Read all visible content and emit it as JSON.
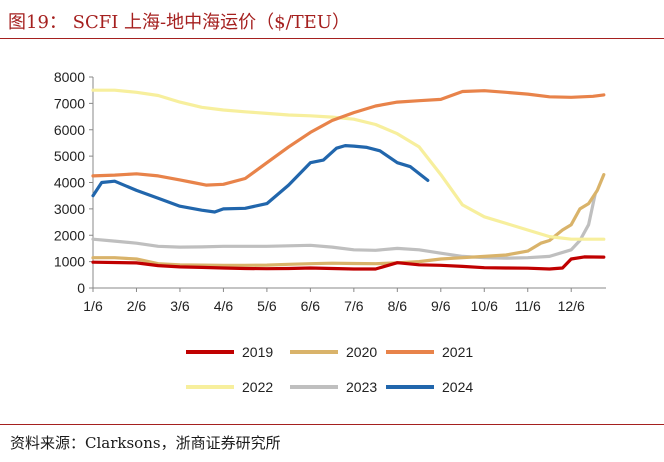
{
  "header": {
    "title": "图19：  SCFI 上海-地中海运价（$/TEU）"
  },
  "footer": {
    "source": "资料来源：Clarksons，浙商证券研究所"
  },
  "chart_data": {
    "type": "line",
    "title": "SCFI 上海-地中海运价（$/TEU）",
    "xlabel": "",
    "ylabel": "",
    "ylim": [
      0,
      8000
    ],
    "yticks": [
      0,
      1000,
      2000,
      3000,
      4000,
      5000,
      6000,
      7000,
      8000
    ],
    "ytick_labels": [
      "0",
      "1000",
      "2000",
      "3000",
      "4000",
      "5000",
      "6000",
      "7000",
      "8000"
    ],
    "xlim": [
      1,
      12.8
    ],
    "xticks": [
      1,
      2,
      3,
      4,
      5,
      6,
      7,
      8,
      9,
      10,
      11,
      12
    ],
    "xtick_labels": [
      "1/6",
      "2/6",
      "3/6",
      "4/6",
      "5/6",
      "6/6",
      "7/6",
      "8/6",
      "9/6",
      "10/6",
      "11/6",
      "12/6"
    ],
    "legend_position": "bottom",
    "grid": false,
    "series": [
      {
        "name": "2019",
        "color": "#c00000",
        "x": [
          1,
          2,
          2.5,
          3,
          3.5,
          4,
          4.5,
          5,
          5.5,
          6,
          6.5,
          7,
          7.5,
          8,
          8.5,
          9,
          9.5,
          10,
          10.5,
          11,
          11.5,
          11.8,
          12,
          12.3,
          12.75
        ],
        "y": [
          980,
          950,
          850,
          800,
          780,
          760,
          740,
          730,
          740,
          760,
          740,
          720,
          720,
          960,
          880,
          860,
          820,
          770,
          760,
          750,
          720,
          760,
          1100,
          1180,
          1170
        ]
      },
      {
        "name": "2020",
        "color": "#d9b36a",
        "x": [
          1,
          1.5,
          2,
          2.5,
          3,
          3.5,
          4,
          4.5,
          5,
          5.5,
          6,
          6.5,
          7,
          7.5,
          8,
          8.5,
          9,
          9.5,
          10,
          10.5,
          11,
          11.3,
          11.5,
          11.8,
          12,
          12.2,
          12.4,
          12.6,
          12.75
        ],
        "y": [
          1150,
          1150,
          1100,
          920,
          880,
          870,
          860,
          860,
          870,
          900,
          920,
          940,
          930,
          920,
          950,
          1000,
          1100,
          1150,
          1200,
          1250,
          1400,
          1700,
          1800,
          2200,
          2400,
          3000,
          3200,
          3700,
          4300
        ]
      },
      {
        "name": "2021",
        "color": "#e8834a",
        "x": [
          1,
          1.5,
          2,
          2.5,
          3,
          3.3,
          3.6,
          4,
          4.5,
          5,
          5.5,
          6,
          6.5,
          7,
          7.5,
          8,
          8.5,
          9,
          9.5,
          10,
          10.5,
          11,
          11.5,
          12,
          12.5,
          12.75
        ],
        "y": [
          4250,
          4280,
          4330,
          4250,
          4100,
          4000,
          3900,
          3930,
          4150,
          4750,
          5350,
          5900,
          6350,
          6650,
          6900,
          7050,
          7100,
          7150,
          7450,
          7480,
          7420,
          7350,
          7250,
          7230,
          7270,
          7320
        ]
      },
      {
        "name": "2022",
        "color": "#f7ef9d",
        "x": [
          1,
          1.5,
          2,
          2.5,
          3,
          3.5,
          4,
          4.5,
          5,
          5.5,
          6,
          6.5,
          7,
          7.5,
          8,
          8.5,
          9,
          9.5,
          10,
          10.5,
          11,
          11.5,
          12,
          12.5,
          12.75
        ],
        "y": [
          7500,
          7500,
          7420,
          7300,
          7050,
          6850,
          6750,
          6680,
          6620,
          6560,
          6530,
          6480,
          6400,
          6200,
          5850,
          5350,
          4300,
          3150,
          2700,
          2450,
          2200,
          1950,
          1850,
          1850,
          1850
        ]
      },
      {
        "name": "2023",
        "color": "#bfbfbf",
        "x": [
          1,
          1.5,
          2,
          2.5,
          3,
          3.5,
          4,
          4.5,
          5,
          5.5,
          6,
          6.5,
          7,
          7.5,
          8,
          8.5,
          9,
          9.5,
          10,
          10.5,
          11,
          11.5,
          12,
          12.2,
          12.4,
          12.55
        ],
        "y": [
          1850,
          1780,
          1700,
          1580,
          1550,
          1560,
          1580,
          1580,
          1580,
          1600,
          1620,
          1550,
          1450,
          1430,
          1500,
          1450,
          1320,
          1200,
          1150,
          1130,
          1150,
          1200,
          1450,
          1800,
          2400,
          3550
        ]
      },
      {
        "name": "2024",
        "color": "#2166ac",
        "x": [
          1,
          1.2,
          1.5,
          2,
          2.5,
          3,
          3.5,
          3.8,
          4,
          4.5,
          5,
          5.5,
          6,
          6.3,
          6.6,
          6.8,
          7,
          7.3,
          7.6,
          8,
          8.3,
          8.7
        ],
        "y": [
          3500,
          4000,
          4050,
          3700,
          3400,
          3100,
          2950,
          2880,
          3000,
          3020,
          3200,
          3900,
          4750,
          4850,
          5300,
          5400,
          5380,
          5330,
          5200,
          4750,
          4600,
          4080
        ]
      }
    ]
  }
}
